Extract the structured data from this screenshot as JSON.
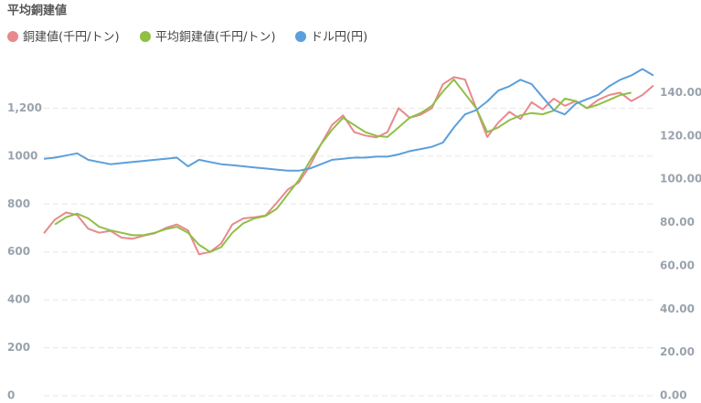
{
  "chart_data": {
    "type": "line",
    "title": "平均銅建値",
    "categories": [
      null,
      null,
      null,
      null,
      null,
      null,
      null,
      null,
      null,
      null,
      null,
      null,
      null,
      null,
      null,
      null,
      null,
      null,
      null,
      null,
      null,
      null,
      null,
      null,
      null,
      null,
      null,
      null,
      null,
      null,
      null,
      null,
      null,
      null,
      null,
      null,
      null,
      null,
      null,
      null,
      null,
      null,
      null,
      null,
      null,
      null,
      null,
      null,
      null,
      null,
      null,
      null,
      null,
      null,
      null,
      null
    ],
    "series": [
      {
        "name": "銅建値(千円/トン)",
        "color": "#e8898c",
        "values": [
          678,
          735,
          765,
          754,
          697,
          680,
          688,
          660,
          655,
          668,
          678,
          700,
          715,
          690,
          590,
          600,
          635,
          715,
          740,
          745,
          752,
          805,
          860,
          890,
          960,
          1050,
          1130,
          1170,
          1100,
          1086,
          1078,
          1100,
          1200,
          1160,
          1173,
          1200,
          1300,
          1330,
          1320,
          1200,
          1080,
          1140,
          1185,
          1155,
          1225,
          1195,
          1240,
          1210,
          1230,
          1200,
          1235,
          1255,
          1265,
          1230,
          1255,
          1295
        ]
      },
      {
        "name": "平均銅建値(千円/トン)",
        "color": "#8fbf45",
        "values": [
          null,
          715,
          745,
          760,
          740,
          705,
          690,
          680,
          670,
          670,
          680,
          695,
          705,
          680,
          630,
          600,
          620,
          680,
          720,
          740,
          750,
          780,
          840,
          900,
          980,
          1050,
          1110,
          1160,
          1130,
          1100,
          1085,
          1080,
          1120,
          1160,
          1180,
          1210,
          1270,
          1320,
          1260,
          1200,
          1100,
          1120,
          1150,
          1170,
          1180,
          1175,
          1190,
          1240,
          1230,
          1200,
          1215,
          1235,
          1255,
          1265,
          null,
          null
        ]
      },
      {
        "name": "ドル円(円)",
        "color": "#5b9fdc",
        "axis": "y2",
        "values": [
          109.5,
          110,
          111,
          112,
          109,
          108,
          107,
          107.5,
          108,
          108.5,
          109,
          109.5,
          110,
          106,
          109,
          108,
          107,
          106.5,
          106,
          105.5,
          105,
          104.5,
          104,
          104,
          105,
          107,
          109,
          109.5,
          110,
          110,
          110.5,
          110.5,
          111.5,
          113,
          114,
          115,
          117,
          124,
          130,
          132,
          136,
          141,
          143,
          146,
          144,
          138,
          132,
          130,
          135,
          137,
          139,
          143,
          146,
          148,
          151,
          148
        ]
      }
    ],
    "ylim": [
      0,
      1400
    ],
    "yticks": [
      0,
      200,
      400,
      600,
      800,
      1000,
      {
        "value": 1200,
        "label": "1,200"
      }
    ],
    "y2lim": [
      0,
      155
    ],
    "y2ticks": [
      {
        "value": 0,
        "label": "0.00"
      },
      {
        "value": 20,
        "label": "20.00"
      },
      {
        "value": 40,
        "label": "40.00"
      },
      {
        "value": 60,
        "label": "60.00"
      },
      {
        "value": 80,
        "label": "80.00"
      },
      {
        "value": 100,
        "label": "100.00"
      },
      {
        "value": 120,
        "label": "120.00"
      },
      {
        "value": 140,
        "label": "140.00"
      }
    ],
    "grid": true
  }
}
